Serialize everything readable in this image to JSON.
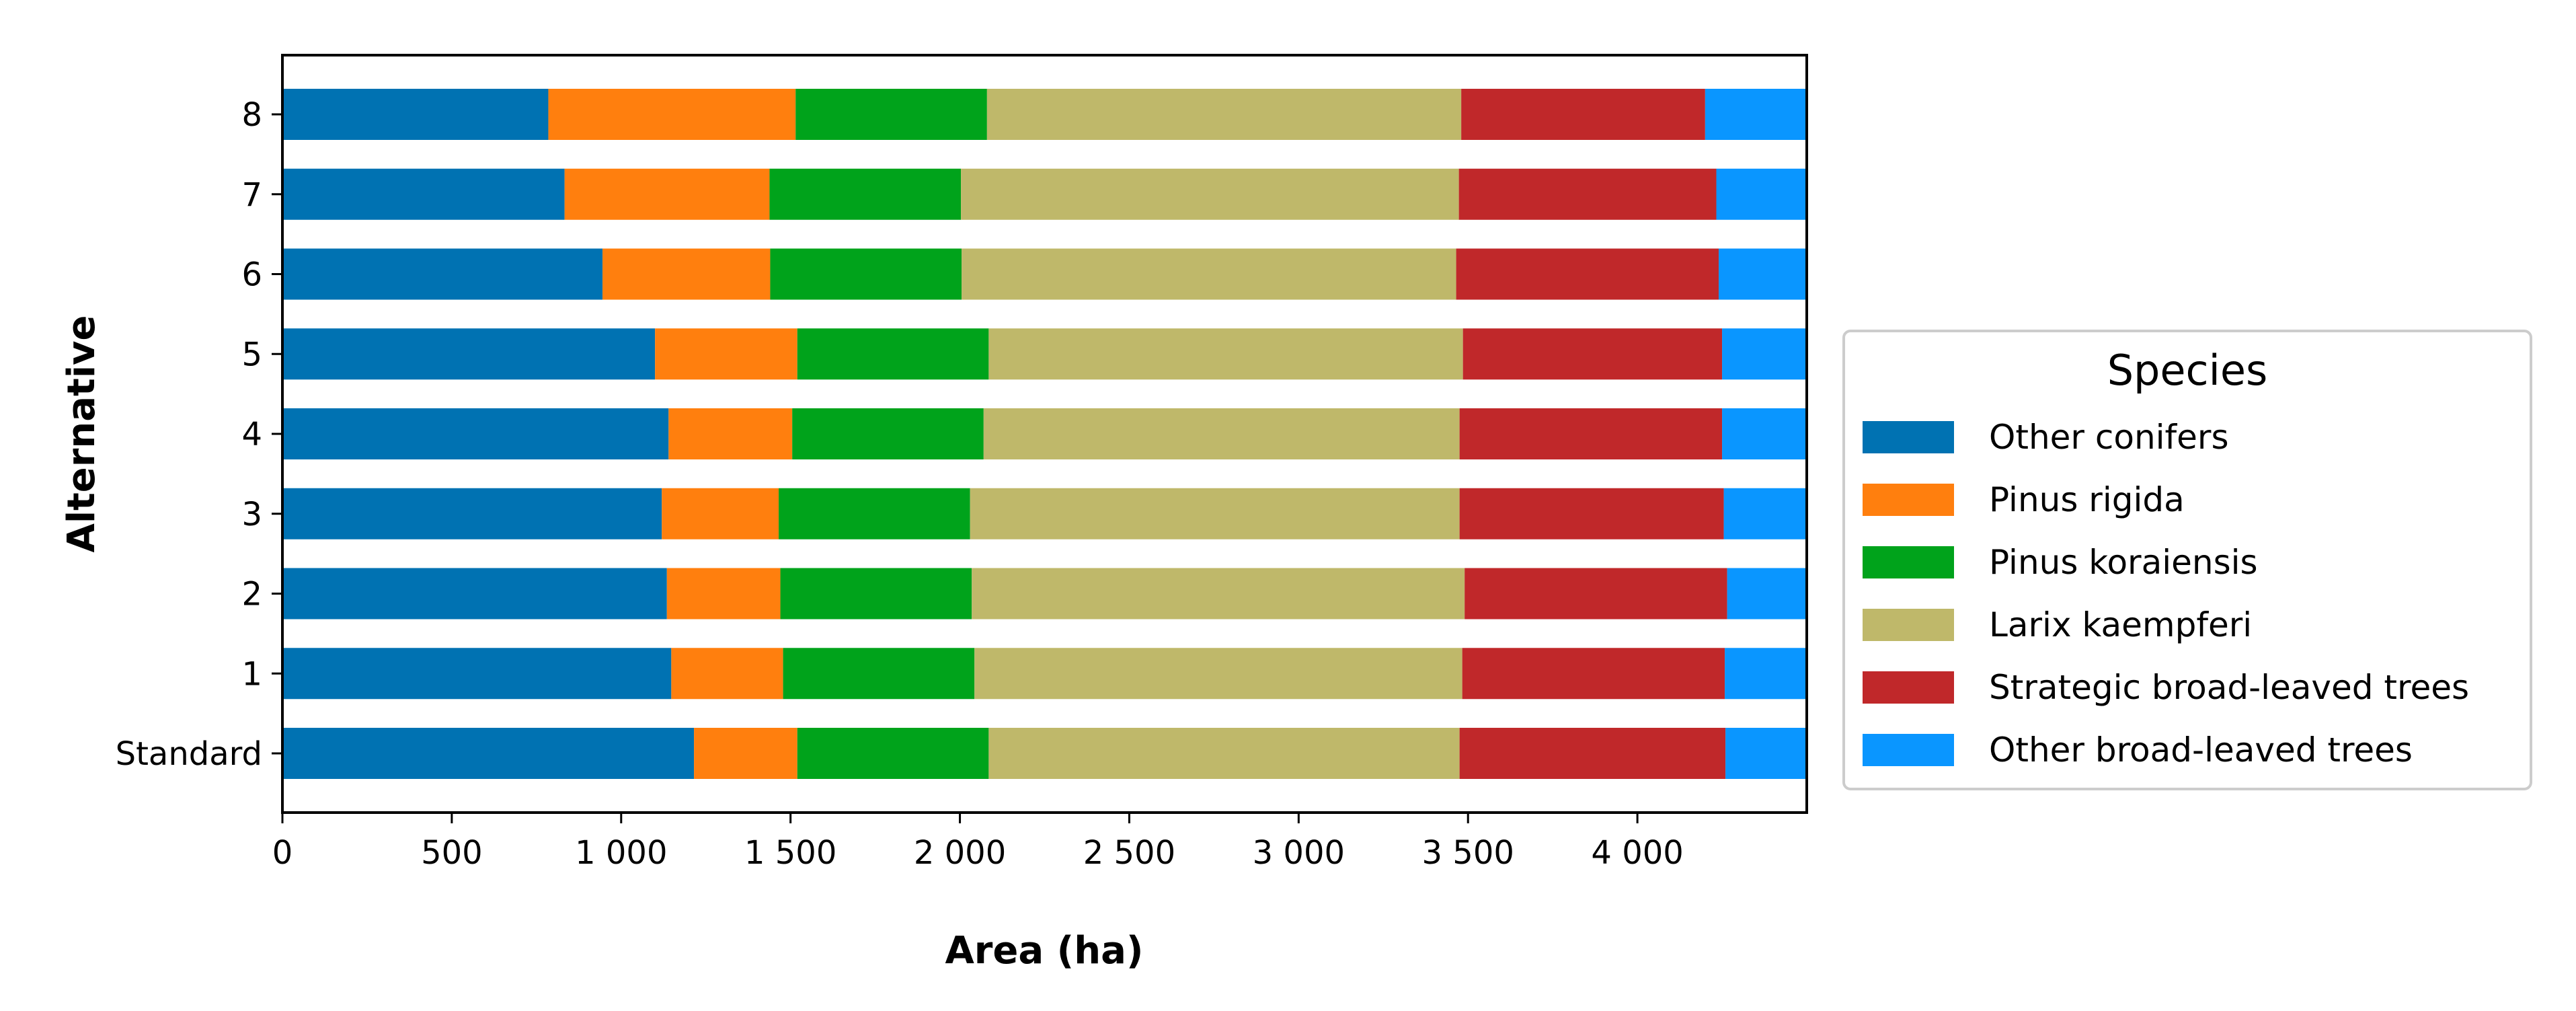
{
  "chart_data": {
    "type": "bar",
    "orientation": "horizontal",
    "stacked": true,
    "xlabel": "Area (ha)",
    "ylabel": "Alternative",
    "xlim": [
      0,
      4500
    ],
    "x_ticks": [
      0,
      500,
      1000,
      1500,
      2000,
      2500,
      3000,
      3500,
      4000
    ],
    "x_tick_labels": [
      "0",
      "500",
      "1 000",
      "1 500",
      "2 000",
      "2 500",
      "3 000",
      "3 500",
      "4 000"
    ],
    "categories": [
      "Standard",
      "1",
      "2",
      "3",
      "4",
      "5",
      "6",
      "7",
      "8"
    ],
    "grid": false,
    "legend": {
      "title": "Species",
      "placement": "right"
    },
    "series": [
      {
        "name": "Other conifers",
        "color": "#0072B2",
        "values": [
          1215,
          1148,
          1135,
          1120,
          1140,
          1100,
          945,
          833,
          785
        ]
      },
      {
        "name": "Pinus rigida",
        "color": "#FF7F0E",
        "values": [
          305,
          330,
          335,
          345,
          365,
          420,
          495,
          605,
          730
        ]
      },
      {
        "name": "Pinus koraiensis",
        "color": "#00A31B",
        "values": [
          565,
          565,
          565,
          565,
          565,
          565,
          565,
          565,
          565
        ]
      },
      {
        "name": "Larix kaempferi",
        "color": "#BFB86A",
        "values": [
          1390,
          1440,
          1455,
          1445,
          1405,
          1400,
          1460,
          1470,
          1400
        ]
      },
      {
        "name": "Strategic broad-leaved trees",
        "color": "#C0282A",
        "values": [
          785,
          775,
          775,
          780,
          775,
          765,
          775,
          760,
          720
        ]
      },
      {
        "name": "Other broad-leaved trees",
        "color": "#0A96FF",
        "values": [
          240,
          242,
          235,
          245,
          250,
          250,
          260,
          267,
          300
        ]
      }
    ]
  }
}
